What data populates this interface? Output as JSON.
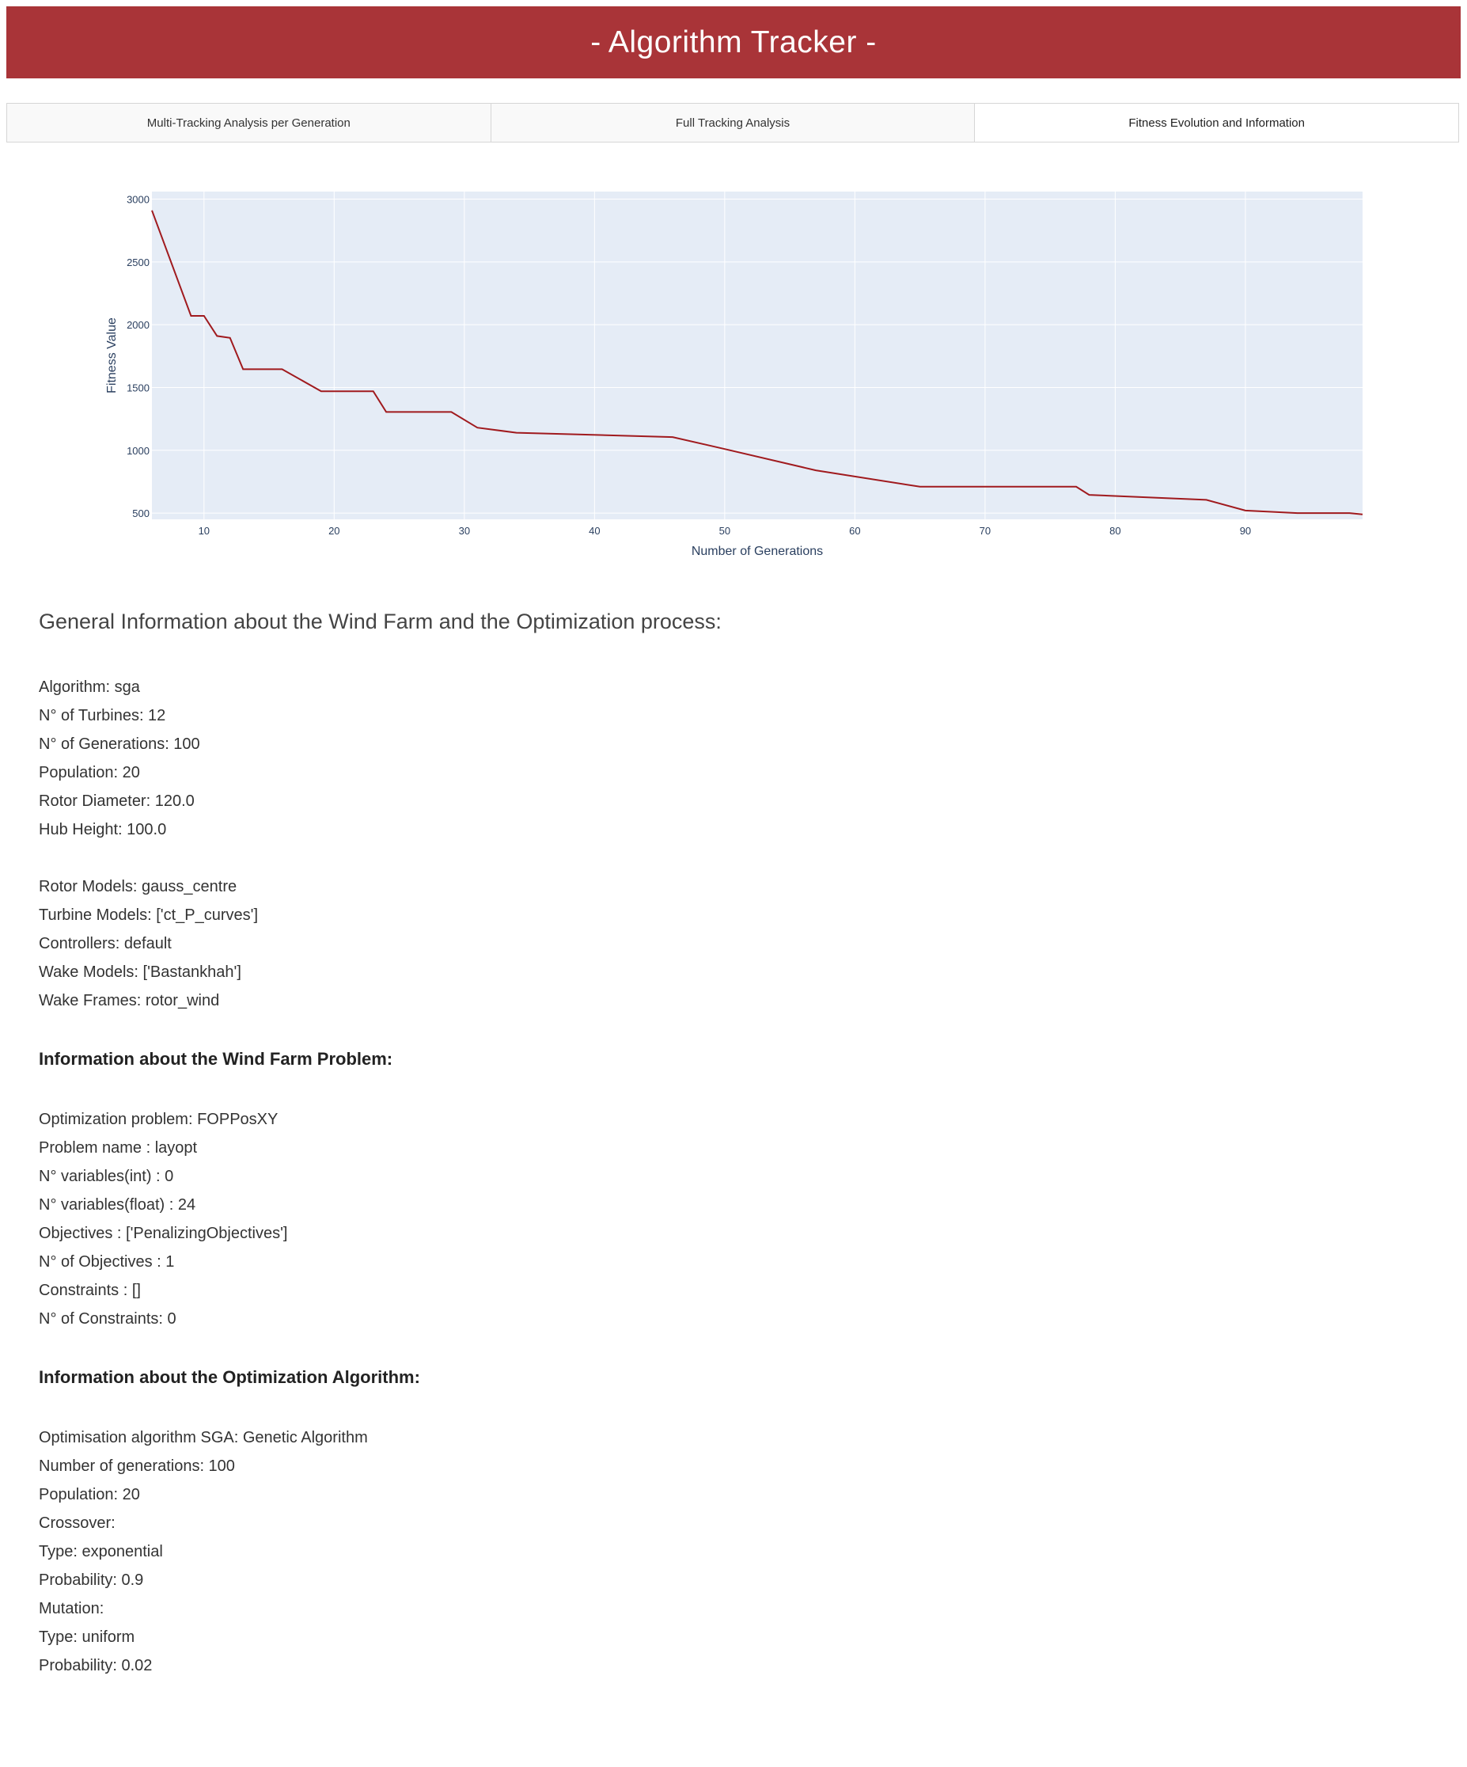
{
  "header": {
    "title": "- Algorithm Tracker -"
  },
  "tabs": [
    {
      "label": "Multi-Tracking Analysis per Generation"
    },
    {
      "label": "Full Tracking Analysis"
    },
    {
      "label": "Fitness Evolution and Information"
    }
  ],
  "chart_data": {
    "type": "line",
    "xlabel": "Number of Generations",
    "ylabel": "Fitness Value",
    "xlim": [
      6,
      99
    ],
    "ylim": [
      450,
      3060
    ],
    "x_ticks": [
      10,
      20,
      30,
      40,
      50,
      60,
      70,
      80,
      90
    ],
    "y_ticks": [
      500,
      1000,
      1500,
      2000,
      2500,
      3000
    ],
    "grid": true,
    "colors": {
      "line": "#a01a1e",
      "plot_bg": "#e5ecf6",
      "grid": "#ffffff",
      "axis_text": "#2a3f5f"
    },
    "series": [
      {
        "x": [
          6,
          9,
          10,
          11,
          12,
          13,
          16,
          19,
          23,
          24,
          29,
          31,
          34,
          46,
          50,
          57,
          65,
          77,
          78,
          87,
          90,
          94,
          98,
          99
        ],
        "y": [
          2910,
          2070,
          2070,
          1910,
          1895,
          1645,
          1645,
          1470,
          1470,
          1305,
          1305,
          1180,
          1140,
          1105,
          1010,
          840,
          710,
          710,
          645,
          605,
          520,
          500,
          500,
          490
        ]
      }
    ]
  },
  "info": {
    "section_title": "General Information about the Wind Farm and the Optimization process:",
    "general_lines_1": [
      "Algorithm: sga",
      "N° of Turbines: 12",
      "N° of Generations: 100",
      "Population: 20",
      "Rotor Diameter: 120.0",
      "Hub Height: 100.0"
    ],
    "general_lines_2": [
      "Rotor Models: gauss_centre",
      "Turbine Models: ['ct_P_curves']",
      "Controllers: default",
      "Wake Models: ['Bastankhah']",
      "Wake Frames: rotor_wind"
    ],
    "problem_heading": "Information about the Wind Farm Problem:",
    "problem_lines": [
      "Optimization problem: FOPPosXY",
      "Problem name : layopt",
      "N° variables(int) : 0",
      "N° variables(float) : 24",
      "Objectives : ['PenalizingObjectives']",
      "N° of Objectives : 1",
      "Constraints : []",
      "N° of Constraints: 0"
    ],
    "algorithm_heading": "Information about the Optimization Algorithm:",
    "algorithm_lines": [
      "Optimisation algorithm SGA: Genetic Algorithm",
      "Number of generations: 100",
      "Population: 20",
      "Crossover:",
      "Type: exponential",
      "Probability: 0.9",
      "Mutation:",
      "Type: uniform",
      "Probability: 0.02"
    ]
  }
}
